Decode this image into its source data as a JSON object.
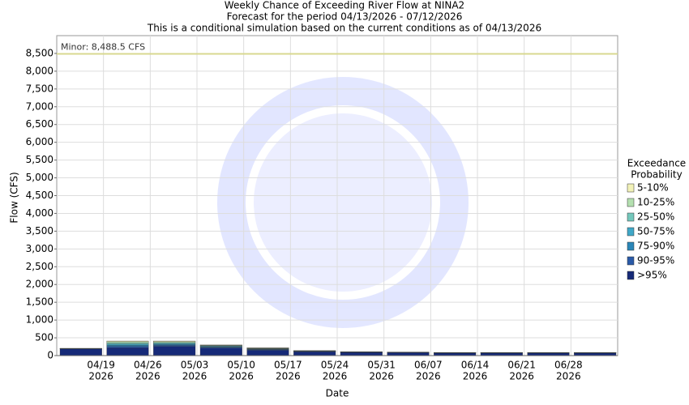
{
  "chart_data": {
    "type": "stacked_bar",
    "title": [
      "Weekly Chance of Exceeding River Flow at NINA2",
      "Forecast for the period 04/13/2026 - 07/12/2026",
      "This is a conditional simulation based on the current conditions as of 04/13/2026"
    ],
    "xlabel": "Date",
    "ylabel": "Flow (CFS)",
    "legend_title": [
      "Exceedance",
      "Probability"
    ],
    "xticks": [
      [
        "04/19",
        "2026"
      ],
      [
        "04/26",
        "2026"
      ],
      [
        "05/03",
        "2026"
      ],
      [
        "05/10",
        "2026"
      ],
      [
        "05/17",
        "2026"
      ],
      [
        "05/24",
        "2026"
      ],
      [
        "05/31",
        "2026"
      ],
      [
        "06/07",
        "2026"
      ],
      [
        "06/14",
        "2026"
      ],
      [
        "06/21",
        "2026"
      ],
      [
        "06/28",
        "2026"
      ]
    ],
    "ylim": [
      0,
      9000
    ],
    "yticks": [
      0,
      500,
      {
        "value": 1000,
        "label": "1,000"
      },
      {
        "value": 1500,
        "label": "1,500"
      },
      {
        "value": 2000,
        "label": "2,000"
      },
      {
        "value": 2500,
        "label": "2,500"
      },
      {
        "value": 3000,
        "label": "3,000"
      },
      {
        "value": 3500,
        "label": "3,500"
      },
      {
        "value": 4000,
        "label": "4,000"
      },
      {
        "value": 4500,
        "label": "4,500"
      },
      {
        "value": 5000,
        "label": "5,000"
      },
      {
        "value": 5500,
        "label": "5,500"
      },
      {
        "value": 6000,
        "label": "6,000"
      },
      {
        "value": 6500,
        "label": "6,500"
      },
      {
        "value": 7000,
        "label": "7,000"
      },
      {
        "value": 7500,
        "label": "7,500"
      },
      {
        "value": 8000,
        "label": "8,000"
      },
      {
        "value": 8500,
        "label": "8,500"
      }
    ],
    "grid": true,
    "threshold": {
      "label": "Minor: 8,488.5 CFS",
      "value": 8488.5,
      "color": "#d8d890"
    },
    "series": [
      {
        "name": "5-10%",
        "color": "#f2f2b8",
        "values": [
          2,
          20,
          20,
          10,
          10,
          2,
          1,
          1,
          1,
          1,
          1,
          1
        ]
      },
      {
        "name": "10-25%",
        "color": "#b4e0b0",
        "values": [
          2,
          30,
          25,
          10,
          10,
          3,
          2,
          2,
          1,
          1,
          1,
          1
        ]
      },
      {
        "name": "25-50%",
        "color": "#74c8bc",
        "values": [
          2,
          40,
          25,
          15,
          10,
          5,
          2,
          2,
          2,
          2,
          2,
          2
        ]
      },
      {
        "name": "50-75%",
        "color": "#40a8c8",
        "values": [
          2,
          30,
          25,
          15,
          10,
          5,
          3,
          3,
          3,
          3,
          3,
          3
        ]
      },
      {
        "name": "75-90%",
        "color": "#2a86b8",
        "values": [
          2,
          30,
          25,
          15,
          10,
          5,
          4,
          4,
          3,
          3,
          3,
          3
        ]
      },
      {
        "name": "90-95%",
        "color": "#2a5aa8",
        "values": [
          5,
          40,
          30,
          25,
          20,
          10,
          8,
          6,
          5,
          5,
          5,
          5
        ]
      },
      {
        "name": ">95%",
        "color": "#162a78",
        "values": [
          190,
          220,
          260,
          210,
          150,
          110,
          90,
          82,
          70,
          70,
          70,
          70
        ]
      }
    ]
  }
}
